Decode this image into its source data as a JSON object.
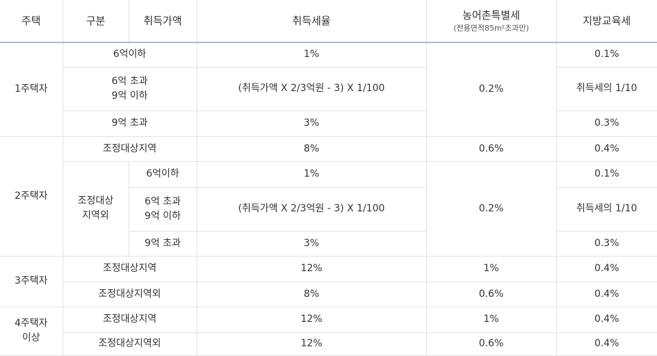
{
  "header": {
    "house": "주택",
    "category": "구분",
    "price": "취득가액",
    "tax_rate": "취득세율",
    "rural_tax": "농어촌특별세",
    "rural_note": "(전용면적85m²초과만)",
    "edu_tax": "지방교육세"
  },
  "table": {
    "rows": [
      [
        "1주택자",
        "6억이하",
        "1%",
        "0.2%",
        "0.1%"
      ],
      [
        [
          "6억 초과",
          "9억 이하"
        ],
        "(취득가액 X 2/3억원 - 3) X 1/100",
        "취득세의 1/10"
      ],
      [
        "9억 초과",
        "3%",
        "0.3%"
      ],
      [
        "2주택자",
        "조정대상지역",
        "8%",
        "0.6%",
        "0.4%"
      ],
      [
        [
          "조정대상",
          "지역외"
        ],
        "6억이하",
        "1%",
        "0.2%",
        "0.1%"
      ],
      [
        [
          "6억 초과",
          "9억 이하"
        ],
        "(취득가액 X 2/3억원 - 3) X 1/100",
        "취득세의 1/10"
      ],
      [
        "9억 초과",
        "3%",
        "0.3%"
      ],
      [
        "3주택자",
        "조정대상지역",
        "12%",
        "1%",
        "0.4%"
      ],
      [
        "조정대상지역외",
        "8%",
        "0.6%",
        "0.4%"
      ],
      [
        [
          "4주택자",
          "이상"
        ],
        "조정대상지역",
        "12%",
        "1%",
        "0.4%"
      ],
      [
        "조정대상지역외",
        "12%",
        "0.6%",
        "0.4%"
      ]
    ]
  }
}
